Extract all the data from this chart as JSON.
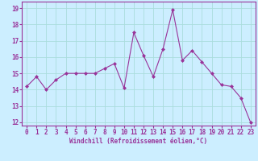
{
  "x": [
    0,
    1,
    2,
    3,
    4,
    5,
    6,
    7,
    8,
    9,
    10,
    11,
    12,
    13,
    14,
    15,
    16,
    17,
    18,
    19,
    20,
    21,
    22,
    23
  ],
  "y": [
    14.2,
    14.8,
    14.0,
    14.6,
    15.0,
    15.0,
    15.0,
    15.0,
    15.3,
    15.6,
    14.1,
    17.5,
    16.1,
    14.8,
    16.5,
    18.9,
    15.8,
    16.4,
    15.7,
    15.0,
    14.3,
    14.2,
    13.5,
    12.0
  ],
  "line_color": "#993399",
  "marker": "D",
  "marker_size": 2,
  "bg_color": "#cceeff",
  "grid_color": "#aadddd",
  "xlabel": "Windchill (Refroidissement éolien,°C)",
  "xlabel_color": "#993399",
  "tick_color": "#993399",
  "spine_color": "#993399",
  "xlim": [
    -0.5,
    23.5
  ],
  "ylim": [
    11.8,
    19.4
  ],
  "yticks": [
    12,
    13,
    14,
    15,
    16,
    17,
    18,
    19
  ],
  "xticks": [
    0,
    1,
    2,
    3,
    4,
    5,
    6,
    7,
    8,
    9,
    10,
    11,
    12,
    13,
    14,
    15,
    16,
    17,
    18,
    19,
    20,
    21,
    22,
    23
  ],
  "xlabel_fontsize": 5.5,
  "tick_fontsize": 5.5,
  "linewidth": 0.8
}
